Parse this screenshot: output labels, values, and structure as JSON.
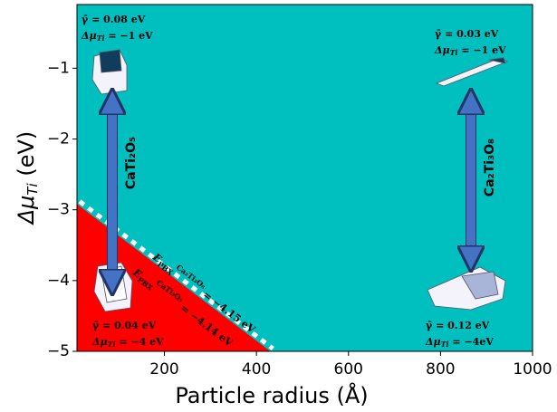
{
  "chart_data": {
    "type": "phase",
    "xlabel": "Particle radius (Å)",
    "ylabel": {
      "main": "Δμ",
      "sub": "Ti",
      "rest": " (eV)"
    },
    "background": "#00bfbf",
    "xlim": [
      10,
      1000
    ],
    "ylim": [
      -5,
      -0.1
    ],
    "xticks": [
      200,
      400,
      600,
      800,
      1000
    ],
    "yticks": [
      {
        "value": -1,
        "label": "−1"
      },
      {
        "value": -2,
        "label": "−2"
      },
      {
        "value": -3,
        "label": "−3"
      },
      {
        "value": -4,
        "label": "−4"
      },
      {
        "value": -5,
        "label": "−5"
      }
    ],
    "region": {
      "color": "#ff0000",
      "x": [
        10,
        430
      ],
      "y": [
        -2.92,
        -5
      ]
    },
    "annotations": [
      {
        "gamma": "γ̄ = 0.08 eV",
        "mu": "Δμ",
        "sub": "Ti",
        "rest": " = −1 eV"
      },
      {
        "gamma": "γ̄ = 0.03 eV",
        "mu": "Δμ",
        "sub": "Ti",
        "rest": " = −1 eV"
      },
      {
        "gamma": "γ̄ = 0.04 eV",
        "mu": "Δμ",
        "sub": "Ti",
        "rest": " = −4 eV"
      },
      {
        "gamma": "γ̄ = 0.12 eV",
        "mu": "Δμ",
        "sub": "Ti",
        "rest": " = −4eV"
      }
    ],
    "arrow_labels": [
      "CaTi₂O₅",
      "Ca₂Ti₃O₈"
    ],
    "boundary_labels": [
      {
        "e": "E",
        "sub": "PBX",
        "sup": "Ca₂Ti₃O₈",
        "rest": " = −4.15 eV"
      },
      {
        "e": "E",
        "sub": "PBX",
        "sup": "CaTi₂O₅",
        "rest": " = −4.14 eV"
      }
    ]
  }
}
